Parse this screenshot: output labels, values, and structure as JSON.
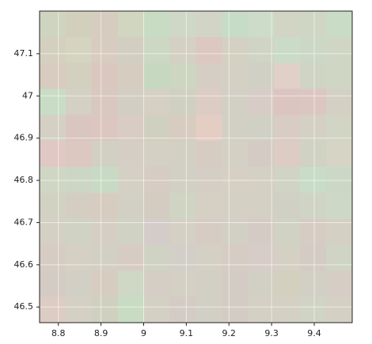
{
  "chart_data": {
    "type": "image",
    "xlim": [
      8.756,
      9.489
    ],
    "ylim": [
      46.463,
      47.201
    ],
    "xticks": [
      8.8,
      8.9,
      9,
      9.1,
      9.2,
      9.3,
      9.4
    ],
    "yticks": [
      46.5,
      46.6,
      46.7,
      46.8,
      46.9,
      47,
      47.1
    ],
    "grid": true,
    "pixels": [
      [
        "#cfd4c0",
        "#d2d0bc",
        "#d6ccc0",
        "#d0d6c0",
        "#c8dcc4",
        "#cfd8c6",
        "#d2d4c6",
        "#c6dcc6",
        "#cddcc8",
        "#d2d4c4",
        "#d0d6c4",
        "#c8dcc6"
      ],
      [
        "#d4d0c0",
        "#d4d4c0",
        "#d8ccc0",
        "#d2cec2",
        "#ccd8c4",
        "#d4d0c4",
        "#dcc8c0",
        "#d4d0c2",
        "#d0d4c4",
        "#cadcc8",
        "#cbd8c6",
        "#d0d6c4"
      ],
      [
        "#d8cbbf",
        "#d4d0c0",
        "#dac8c0",
        "#d6ccc0",
        "#c6d8c0",
        "#ccd6c0",
        "#d6cec4",
        "#d4d0c4",
        "#d0d0c4",
        "#e0d0c8",
        "#d0d4c4",
        "#cfd6c4"
      ],
      [
        "#c8dcc6",
        "#d4d0c4",
        "#d8c8c0",
        "#d2cec4",
        "#d6d0c4",
        "#d0d0c2",
        "#dcccc4",
        "#d2d0c4",
        "#d8ccc6",
        "#dcc4c0",
        "#dcc6c2",
        "#d4d0c4"
      ],
      [
        "#d4d0c4",
        "#dac6c0",
        "#dcc6c0",
        "#d8ccc4",
        "#d0d0c0",
        "#d8ccc0",
        "#e4cec4",
        "#d2d0c4",
        "#d0d0c4",
        "#d8ccc4",
        "#d4d0c4",
        "#d2d4c4"
      ],
      [
        "#e0c8c4",
        "#dcc8c0",
        "#d2d0c2",
        "#d4cec4",
        "#d4d0c4",
        "#d2d0c2",
        "#d6ccc2",
        "#d4d0c4",
        "#d4ccc4",
        "#dcccc4",
        "#d0d2c4",
        "#d6d4c4"
      ],
      [
        "#d0d6c4",
        "#ccd6c4",
        "#c8dac4",
        "#d4d0c4",
        "#d6ccc4",
        "#d2d0c4",
        "#d4cec4",
        "#d6d0c4",
        "#d4d0c4",
        "#d0d4c4",
        "#c8dcc8",
        "#ccd8c6"
      ],
      [
        "#d2d2c2",
        "#d4cec2",
        "#d6ccc0",
        "#d2d0c4",
        "#d4ccc0",
        "#d0d4c2",
        "#d6d0c4",
        "#d4d0c4",
        "#d4d0c4",
        "#d0d0c4",
        "#d0d4c4",
        "#cdd8c6"
      ],
      [
        "#d4d0c4",
        "#d0d2c4",
        "#d4cec4",
        "#d0d2c4",
        "#d4ccc8",
        "#d4d0c4",
        "#d6ccc4",
        "#d2d0c4",
        "#d4ccc4",
        "#d0d2c4",
        "#d6ccc4",
        "#d4d0c4"
      ],
      [
        "#d6ccc4",
        "#d4d0c4",
        "#d2d0c4",
        "#d6ccc4",
        "#d0d2c4",
        "#d2cec8",
        "#d4d0c4",
        "#d6ccc4",
        "#d8ccc8",
        "#d4d0c4",
        "#d4ccc4",
        "#d0d4c4"
      ],
      [
        "#d4ccc4",
        "#d2d0c4",
        "#d6ccc0",
        "#cfd8c4",
        "#d4cec4",
        "#d4d0c4",
        "#d2d0c4",
        "#d4ccc4",
        "#d2d0c4",
        "#d4d0c0",
        "#d2d0c4",
        "#d6cec4"
      ],
      [
        "#dcccc4",
        "#d4d0c4",
        "#d0d0c0",
        "#c8dcc4",
        "#d4d0c4",
        "#d4ccc4",
        "#d2d0c4",
        "#d4ccc4",
        "#d4d0c4",
        "#d4d0c4",
        "#d0d4c4",
        "#d4d0c4"
      ]
    ]
  }
}
